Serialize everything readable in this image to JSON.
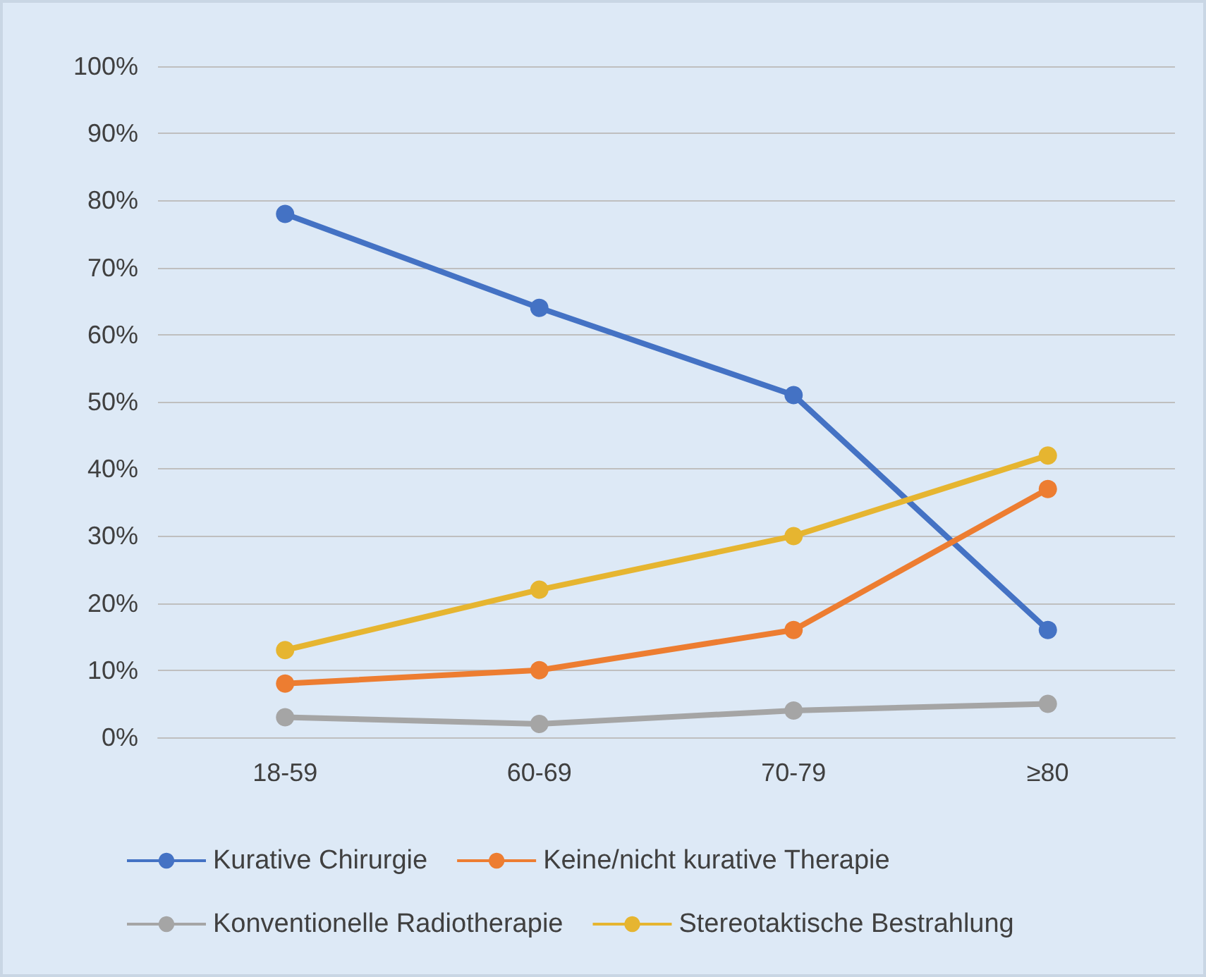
{
  "chart_data": {
    "type": "line",
    "categories": [
      "18-59",
      "60-69",
      "70-79",
      "≥80"
    ],
    "series": [
      {
        "name": "Kurative Chirurgie",
        "color": "#4472c4",
        "values": [
          78,
          64,
          51,
          16
        ]
      },
      {
        "name": "Keine/nicht kurative Therapie",
        "color": "#ed7d31",
        "values": [
          8,
          10,
          16,
          37
        ]
      },
      {
        "name": "Konventionelle Radiotherapie",
        "color": "#a5a5a5",
        "values": [
          3,
          2,
          4,
          5
        ]
      },
      {
        "name": "Stereotaktische Bestrahlung",
        "color": "#e6b530",
        "values": [
          13,
          22,
          30,
          42
        ]
      }
    ],
    "ylim": [
      0,
      100
    ],
    "yticks": [
      {
        "value": 0,
        "label": "0%"
      },
      {
        "value": 10,
        "label": "10%"
      },
      {
        "value": 20,
        "label": "20%"
      },
      {
        "value": 30,
        "label": "30%"
      },
      {
        "value": 40,
        "label": "40%"
      },
      {
        "value": 50,
        "label": "50%"
      },
      {
        "value": 60,
        "label": "60%"
      },
      {
        "value": 70,
        "label": "70%"
      },
      {
        "value": 80,
        "label": "80%"
      },
      {
        "value": 90,
        "label": "90%"
      },
      {
        "value": 100,
        "label": "100%"
      }
    ],
    "grid": "y",
    "legend": "bottom",
    "marker": "circle",
    "line_style": "solid"
  }
}
